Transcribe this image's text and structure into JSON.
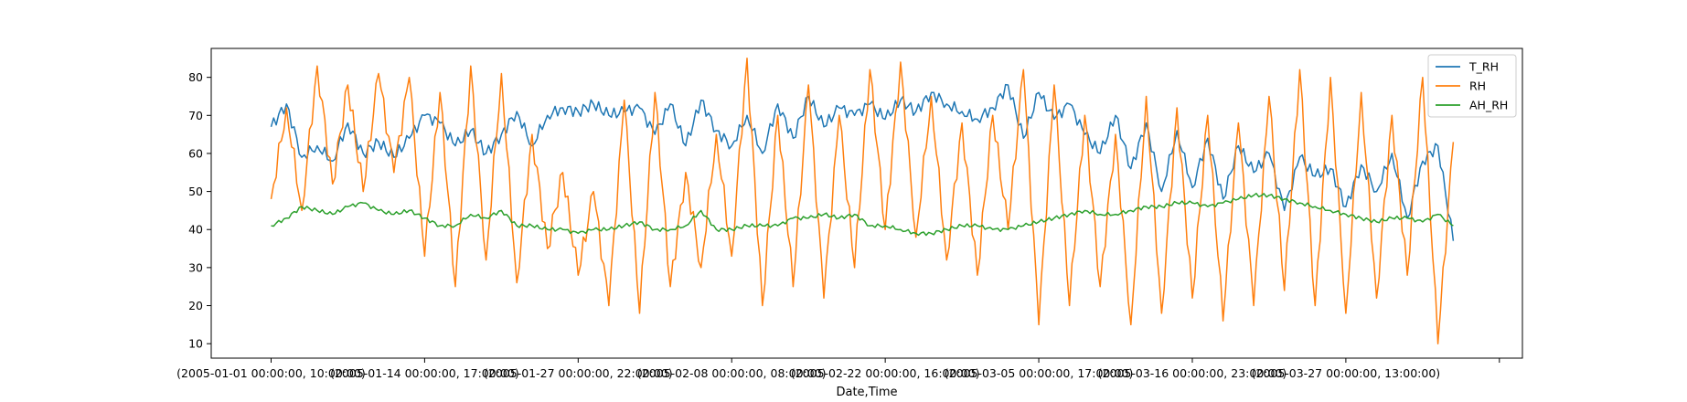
{
  "chart_data": {
    "type": "line",
    "title": "",
    "xlabel": "Date,Time",
    "ylabel": "",
    "ylim": [
      6.2,
      87.6
    ],
    "yticks": [
      10,
      20,
      30,
      40,
      50,
      60,
      70,
      80
    ],
    "grid": false,
    "legend_position": "top-right",
    "x_ticks": [
      "(2005-01-01 00:00:00, 10:00:00)",
      "(2005-01-14 00:00:00, 17:00:00)",
      "(2005-01-27 00:00:00, 22:00:00)",
      "(2005-02-08 00:00:00, 08:00:00)",
      "(2005-02-22 00:00:00, 16:00:00)",
      "(2005-03-05 00:00:00, 17:00:00)",
      "(2005-03-16 00:00:00, 23:00:00)",
      "(2005-03-27 00:00:00, 13:00:00)",
      ""
    ],
    "x_tick_positions": [
      0,
      1,
      2,
      3,
      4,
      5,
      6,
      7,
      8
    ],
    "x_range": [
      -0.39,
      8.15
    ],
    "series": [
      {
        "name": "T_RH",
        "color": "#1f77b4",
        "x": [
          0,
          0.1,
          0.2,
          0.3,
          0.4,
          0.5,
          0.6,
          0.7,
          0.8,
          0.9,
          1,
          1.1,
          1.2,
          1.3,
          1.4,
          1.5,
          1.6,
          1.7,
          1.8,
          1.9,
          2,
          2.1,
          2.2,
          2.3,
          2.4,
          2.5,
          2.6,
          2.7,
          2.8,
          2.9,
          3,
          3.1,
          3.2,
          3.3,
          3.4,
          3.5,
          3.6,
          3.7,
          3.8,
          3.9,
          4,
          4.1,
          4.2,
          4.3,
          4.4,
          4.5,
          4.6,
          4.7,
          4.8,
          4.9,
          5,
          5.1,
          5.2,
          5.3,
          5.4,
          5.5,
          5.6,
          5.7,
          5.8,
          5.9,
          6,
          6.1,
          6.2,
          6.3,
          6.4,
          6.5,
          6.6,
          6.7,
          6.8,
          6.9,
          7,
          7.1,
          7.2,
          7.3,
          7.4,
          7.5,
          7.6,
          7.7
        ],
        "values": [
          67,
          73,
          59,
          62,
          58,
          68,
          60,
          63,
          59,
          64,
          70,
          68,
          62,
          66,
          60,
          65,
          71,
          62,
          70,
          72,
          71,
          73,
          70,
          71,
          72,
          65,
          73,
          62,
          74,
          66,
          62,
          70,
          60,
          73,
          64,
          75,
          67,
          72,
          70,
          73,
          69,
          74,
          71,
          76,
          73,
          71,
          69,
          72,
          78,
          64,
          76,
          69,
          73,
          65,
          60,
          70,
          56,
          68,
          50,
          66,
          51,
          64,
          48,
          62,
          55,
          60,
          45,
          59,
          54,
          56,
          46,
          57,
          50,
          60,
          43,
          58,
          62,
          37
        ]
      },
      {
        "name": "RH",
        "color": "#ff7f0e",
        "x": [
          0,
          0.1,
          0.2,
          0.3,
          0.4,
          0.5,
          0.6,
          0.7,
          0.8,
          0.9,
          1,
          1.1,
          1.2,
          1.3,
          1.4,
          1.5,
          1.6,
          1.7,
          1.8,
          1.9,
          2,
          2.1,
          2.2,
          2.3,
          2.4,
          2.5,
          2.6,
          2.7,
          2.8,
          2.9,
          3,
          3.1,
          3.2,
          3.3,
          3.4,
          3.5,
          3.6,
          3.7,
          3.8,
          3.9,
          4,
          4.1,
          4.2,
          4.3,
          4.4,
          4.5,
          4.6,
          4.7,
          4.8,
          4.9,
          5,
          5.1,
          5.2,
          5.3,
          5.4,
          5.5,
          5.6,
          5.7,
          5.8,
          5.9,
          6,
          6.1,
          6.2,
          6.3,
          6.4,
          6.5,
          6.6,
          6.7,
          6.8,
          6.9,
          7,
          7.1,
          7.2,
          7.3,
          7.4,
          7.5,
          7.6,
          7.7
        ],
        "values": [
          48,
          72,
          45,
          83,
          52,
          78,
          50,
          81,
          55,
          80,
          33,
          76,
          25,
          83,
          32,
          81,
          26,
          65,
          35,
          55,
          28,
          50,
          20,
          74,
          18,
          76,
          25,
          55,
          30,
          65,
          33,
          85,
          20,
          70,
          25,
          78,
          22,
          70,
          30,
          82,
          40,
          84,
          38,
          75,
          32,
          68,
          28,
          70,
          40,
          82,
          15,
          78,
          20,
          70,
          25,
          65,
          15,
          75,
          18,
          72,
          22,
          70,
          16,
          68,
          20,
          75,
          24,
          82,
          20,
          80,
          18,
          76,
          22,
          70,
          28,
          80,
          10,
          63
        ]
      },
      {
        "name": "AH_RH",
        "color": "#2ca02c",
        "x": [
          0,
          0.1,
          0.2,
          0.3,
          0.4,
          0.5,
          0.6,
          0.7,
          0.8,
          0.9,
          1,
          1.1,
          1.2,
          1.3,
          1.4,
          1.5,
          1.6,
          1.7,
          1.8,
          1.9,
          2,
          2.1,
          2.2,
          2.3,
          2.4,
          2.5,
          2.6,
          2.7,
          2.8,
          2.9,
          3,
          3.1,
          3.2,
          3.3,
          3.4,
          3.5,
          3.6,
          3.7,
          3.8,
          3.9,
          4,
          4.1,
          4.2,
          4.3,
          4.4,
          4.5,
          4.6,
          4.7,
          4.8,
          4.9,
          5,
          5.1,
          5.2,
          5.3,
          5.4,
          5.5,
          5.6,
          5.7,
          5.8,
          5.9,
          6,
          6.1,
          6.2,
          6.3,
          6.4,
          6.5,
          6.6,
          6.7,
          6.8,
          6.9,
          7,
          7.1,
          7.2,
          7.3,
          7.4,
          7.5,
          7.6,
          7.7
        ],
        "values": [
          41,
          43,
          46,
          45,
          44,
          46,
          47,
          45,
          44,
          45,
          43,
          41,
          41,
          44,
          43,
          45,
          41,
          41,
          40,
          40,
          39,
          40,
          40,
          41,
          42,
          40,
          40,
          41,
          45,
          40,
          40,
          41,
          41,
          41,
          43,
          43,
          44,
          43,
          44,
          41,
          41,
          40,
          39,
          39,
          40,
          41,
          41,
          40,
          40,
          41,
          42,
          43,
          44,
          45,
          44,
          44,
          45,
          46,
          46,
          47,
          47,
          46,
          47,
          48,
          49,
          49,
          48,
          47,
          46,
          45,
          44,
          43,
          42,
          43,
          43,
          42,
          44,
          41
        ]
      }
    ]
  }
}
